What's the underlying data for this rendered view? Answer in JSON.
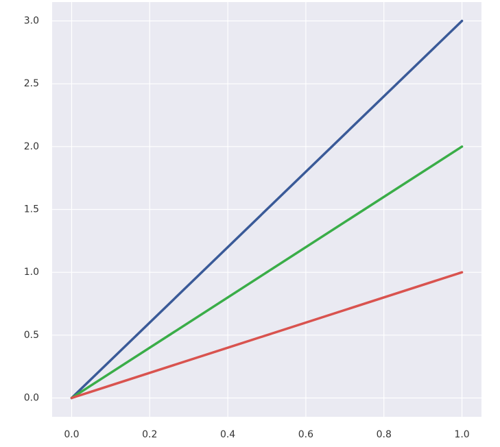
{
  "chart_data": {
    "type": "line",
    "x": [
      0,
      1
    ],
    "series": [
      {
        "color": "#3a5a98",
        "values": [
          0,
          3
        ]
      },
      {
        "color": "#3aad48",
        "values": [
          0,
          2
        ]
      },
      {
        "color": "#d9534f",
        "values": [
          0,
          1
        ]
      }
    ],
    "xlim": [
      -0.05,
      1.05
    ],
    "ylim": [
      -0.15,
      3.15
    ],
    "xticks": [
      {
        "value": 0,
        "label": "0.0"
      },
      0.2,
      0.4,
      0.6,
      0.8,
      {
        "value": 1,
        "label": "1.0"
      }
    ],
    "yticks": [
      {
        "value": 0,
        "label": "0.0"
      },
      0.5,
      {
        "value": 1,
        "label": "1.0"
      },
      1.5,
      {
        "value": 2,
        "label": "2.0"
      },
      2.5,
      {
        "value": 3,
        "label": "3.0"
      }
    ],
    "grid": true,
    "background": "#eaeaf2"
  }
}
